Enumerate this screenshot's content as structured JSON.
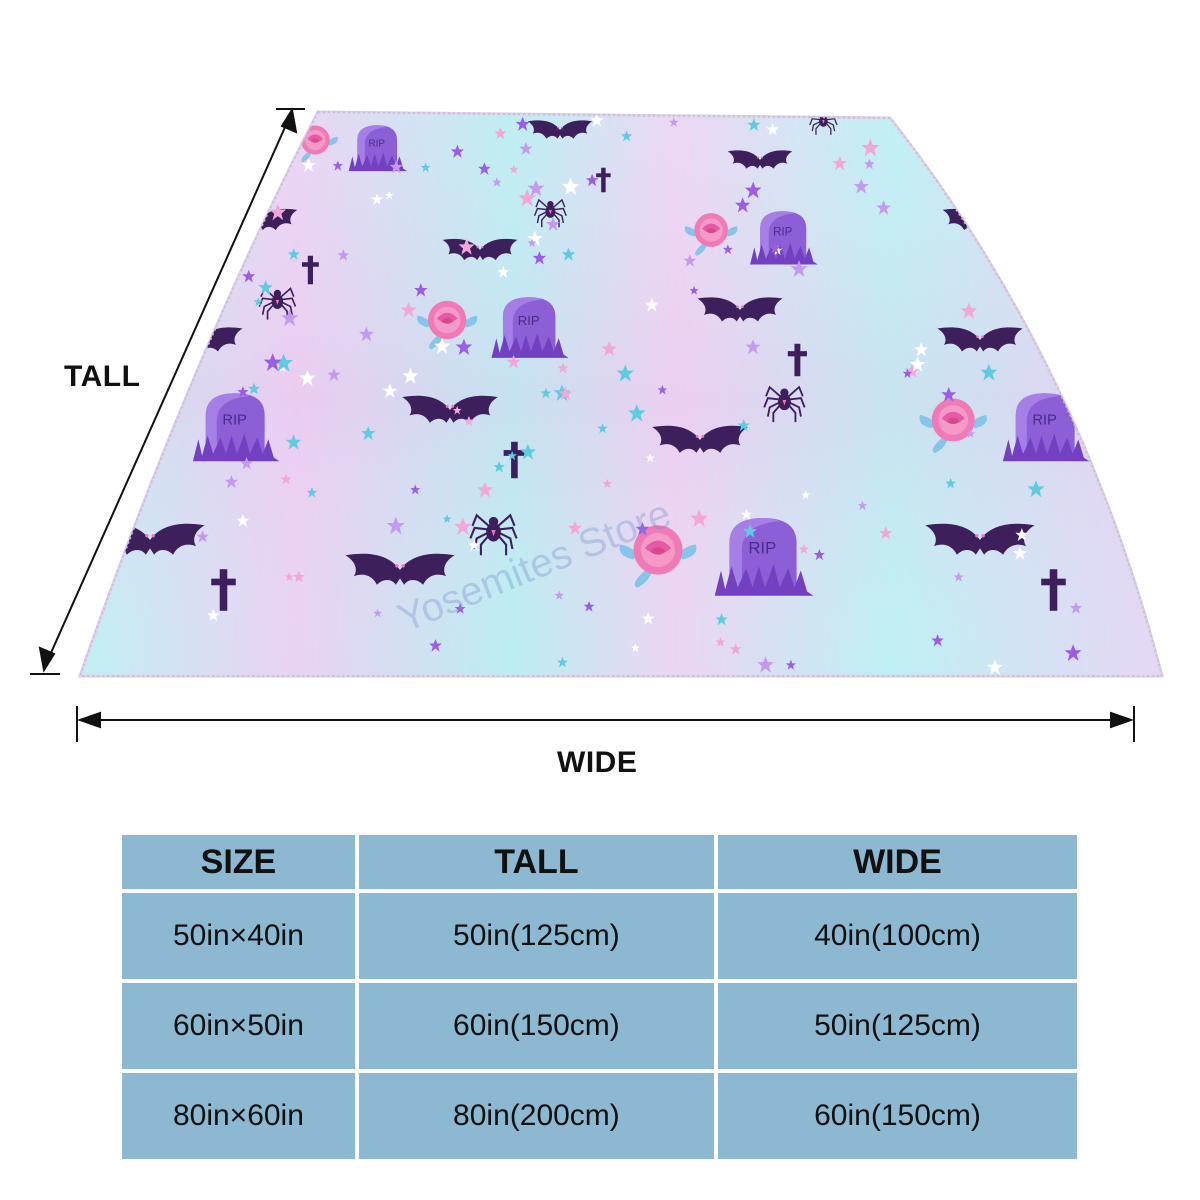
{
  "labels": {
    "tall": "TALL",
    "wide": "WIDE"
  },
  "watermark": "Yosemites Store",
  "pattern": {
    "tombstone_text": "RIP",
    "icons": [
      "bat-icon",
      "tombstone-icon",
      "rose-icon",
      "cross-icon",
      "spider-icon",
      "star-icon"
    ],
    "colors": {
      "bat": "#3d1f5c",
      "tombstone": "#8c5fd6",
      "rose": "#f07ab6",
      "leaf": "#86c5e8",
      "background_a": "#aee9ef",
      "background_b": "#e6c8f0"
    }
  },
  "table": {
    "headers": [
      "SIZE",
      "TALL",
      "WIDE"
    ],
    "rows": [
      {
        "size": "50in×40in",
        "tall": "50in(125cm)",
        "wide": "40in(100cm)"
      },
      {
        "size": "60in×50in",
        "tall": "60in(150cm)",
        "wide": "50in(125cm)"
      },
      {
        "size": "80in×60in",
        "tall": "80in(200cm)",
        "wide": "60in(150cm)"
      }
    ],
    "color": "#8db8d1"
  }
}
